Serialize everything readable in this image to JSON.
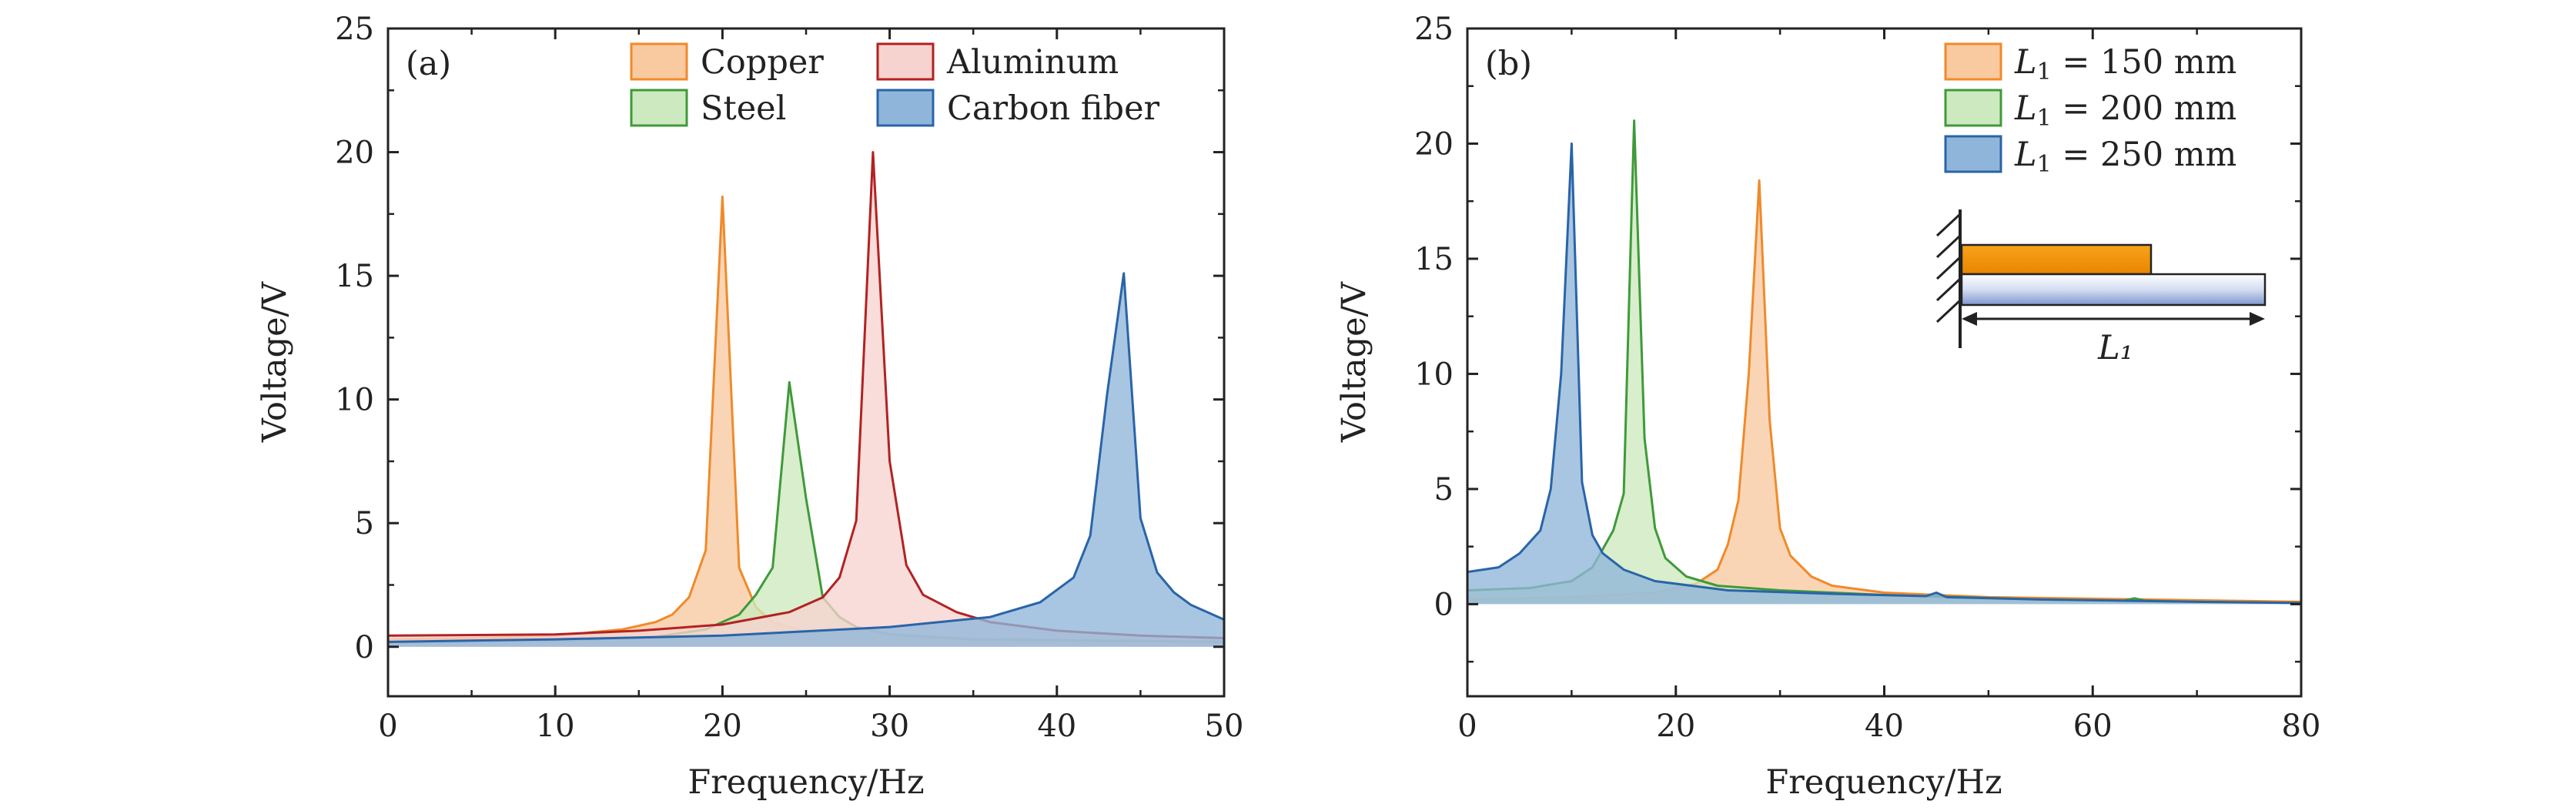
{
  "chart_data": [
    {
      "type": "area",
      "panel_label": "(a)",
      "xlabel": "Frequency/Hz",
      "ylabel": "Voltage/V",
      "xlim": [
        0,
        50
      ],
      "ylim": [
        -2,
        25
      ],
      "xticks": [
        0,
        10,
        20,
        30,
        40,
        50
      ],
      "yticks": [
        0,
        5,
        10,
        15,
        20,
        25
      ],
      "grid": false,
      "legend_position": "top-right",
      "legend_columns": 2,
      "series": [
        {
          "name": "Copper",
          "stroke": "#F08A2A",
          "fill": "#F9C9A0",
          "points": [
            [
              0,
              0.3
            ],
            [
              5,
              0.35
            ],
            [
              10,
              0.45
            ],
            [
              14,
              0.7
            ],
            [
              16,
              1.0
            ],
            [
              17,
              1.3
            ],
            [
              18,
              2.0
            ],
            [
              19,
              3.9
            ],
            [
              20,
              18.2
            ],
            [
              21,
              3.2
            ],
            [
              22,
              1.6
            ],
            [
              23,
              1.0
            ],
            [
              25,
              0.6
            ],
            [
              28,
              0.4
            ],
            [
              35,
              0.3
            ],
            [
              50,
              0.2
            ]
          ]
        },
        {
          "name": "Steel",
          "stroke": "#3F9A3A",
          "fill": "#CDE9BF",
          "points": [
            [
              0,
              0.2
            ],
            [
              10,
              0.25
            ],
            [
              16,
              0.4
            ],
            [
              19,
              0.7
            ],
            [
              21,
              1.3
            ],
            [
              22,
              2.1
            ],
            [
              23,
              3.2
            ],
            [
              24,
              10.7
            ],
            [
              25,
              6.0
            ],
            [
              26,
              2.0
            ],
            [
              27,
              1.2
            ],
            [
              28,
              0.8
            ],
            [
              30,
              0.5
            ],
            [
              35,
              0.3
            ],
            [
              50,
              0.2
            ]
          ]
        },
        {
          "name": "Aluminum",
          "stroke": "#B22222",
          "fill": "#F6D3CF",
          "points": [
            [
              0,
              0.45
            ],
            [
              10,
              0.5
            ],
            [
              15,
              0.65
            ],
            [
              20,
              0.9
            ],
            [
              24,
              1.4
            ],
            [
              26,
              2.0
            ],
            [
              27,
              2.8
            ],
            [
              28,
              5.1
            ],
            [
              29,
              20.0
            ],
            [
              30,
              7.5
            ],
            [
              31,
              3.3
            ],
            [
              32,
              2.1
            ],
            [
              34,
              1.4
            ],
            [
              36,
              1.0
            ],
            [
              40,
              0.65
            ],
            [
              45,
              0.45
            ],
            [
              50,
              0.35
            ]
          ]
        },
        {
          "name": "Carbon fiber",
          "stroke": "#2A64A8",
          "fill": "#8FB6DA",
          "points": [
            [
              0,
              0.2
            ],
            [
              10,
              0.3
            ],
            [
              20,
              0.45
            ],
            [
              30,
              0.8
            ],
            [
              36,
              1.2
            ],
            [
              39,
              1.8
            ],
            [
              41,
              2.8
            ],
            [
              42,
              4.5
            ],
            [
              43,
              10.2
            ],
            [
              44,
              15.1
            ],
            [
              45,
              5.2
            ],
            [
              46,
              3.0
            ],
            [
              47,
              2.2
            ],
            [
              48,
              1.7
            ],
            [
              50,
              1.1
            ]
          ]
        }
      ]
    },
    {
      "type": "area",
      "panel_label": "(b)",
      "xlabel": "Frequency/Hz",
      "ylabel": "Voltage/V",
      "xlim": [
        0,
        80
      ],
      "ylim": [
        -4,
        25
      ],
      "xticks": [
        0,
        20,
        40,
        60,
        80
      ],
      "yticks": [
        0,
        5,
        10,
        15,
        20,
        25
      ],
      "grid": false,
      "legend_position": "top-right",
      "legend_columns": 1,
      "inset_label": "L₁",
      "series": [
        {
          "name_var": "L",
          "name_sub": "1",
          "name_rest": " = 150 mm",
          "stroke": "#F08A2A",
          "fill": "#F9C9A0",
          "points": [
            [
              0,
              0.2
            ],
            [
              10,
              0.3
            ],
            [
              18,
              0.5
            ],
            [
              22,
              0.9
            ],
            [
              24,
              1.5
            ],
            [
              25,
              2.6
            ],
            [
              26,
              4.5
            ],
            [
              27,
              10.0
            ],
            [
              28,
              18.4
            ],
            [
              29,
              8.0
            ],
            [
              30,
              3.3
            ],
            [
              31,
              2.1
            ],
            [
              33,
              1.2
            ],
            [
              35,
              0.8
            ],
            [
              40,
              0.5
            ],
            [
              50,
              0.3
            ],
            [
              65,
              0.2
            ],
            [
              80,
              0.1
            ]
          ]
        },
        {
          "name_var": "L",
          "name_sub": "1",
          "name_rest": " = 200 mm",
          "stroke": "#3F9A3A",
          "fill": "#CDE9BF",
          "points": [
            [
              0,
              0.6
            ],
            [
              6,
              0.7
            ],
            [
              10,
              1.0
            ],
            [
              12,
              1.6
            ],
            [
              13,
              2.4
            ],
            [
              14,
              3.2
            ],
            [
              15,
              4.8
            ],
            [
              16,
              21.0
            ],
            [
              17,
              7.2
            ],
            [
              18,
              3.3
            ],
            [
              19,
              2.0
            ],
            [
              21,
              1.2
            ],
            [
              24,
              0.8
            ],
            [
              30,
              0.6
            ],
            [
              40,
              0.4
            ],
            [
              55,
              0.2
            ],
            [
              63,
              0.15
            ],
            [
              64,
              0.25
            ],
            [
              65,
              0.15
            ],
            [
              70,
              0.1
            ],
            [
              80,
              0.05
            ]
          ]
        },
        {
          "name_var": "L",
          "name_sub": "1",
          "name_rest": " = 250 mm",
          "stroke": "#2A64A8",
          "fill": "#8FB6DA",
          "points": [
            [
              0,
              1.4
            ],
            [
              3,
              1.6
            ],
            [
              5,
              2.2
            ],
            [
              7,
              3.2
            ],
            [
              8,
              5.0
            ],
            [
              9,
              10.0
            ],
            [
              10,
              20.0
            ],
            [
              11,
              5.3
            ],
            [
              12,
              3.0
            ],
            [
              13,
              2.2
            ],
            [
              15,
              1.5
            ],
            [
              18,
              1.0
            ],
            [
              25,
              0.6
            ],
            [
              35,
              0.45
            ],
            [
              44,
              0.35
            ],
            [
              45,
              0.5
            ],
            [
              46,
              0.3
            ],
            [
              55,
              0.2
            ],
            [
              70,
              0.1
            ],
            [
              80,
              0.05
            ]
          ]
        }
      ]
    }
  ]
}
